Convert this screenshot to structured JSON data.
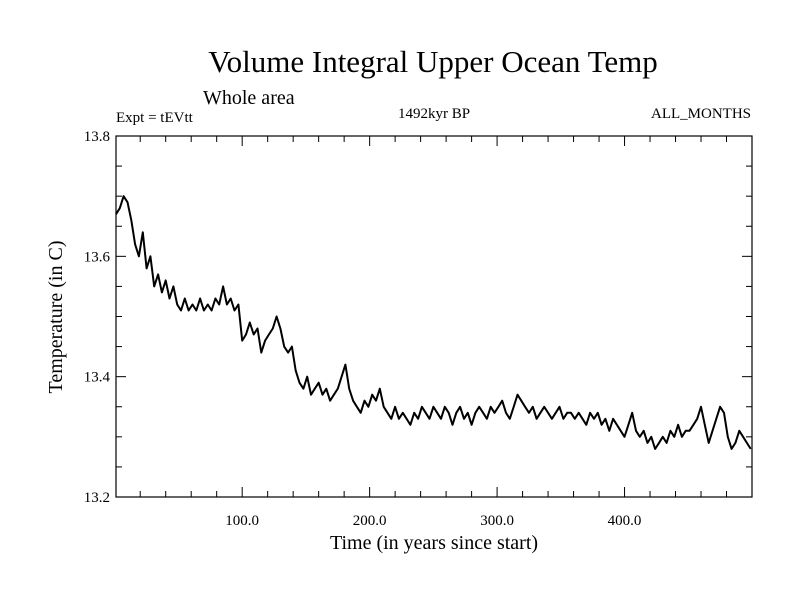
{
  "chart_data": {
    "type": "line",
    "title": "Volume Integral Upper Ocean Temp",
    "subtitle": "Whole area",
    "expt_label": "Expt = tEVtt",
    "center_label": "1492kyr BP",
    "right_label": "ALL_MONTHS",
    "xlabel": "Time (in years since start)",
    "ylabel": "Temperature (in C)",
    "xlim": [
      1,
      500
    ],
    "ylim": [
      13.2,
      13.8
    ],
    "x_ticks": [
      100,
      200,
      300,
      400
    ],
    "x_tick_labels": [
      "100.0",
      "200.0",
      "300.0",
      "400.0"
    ],
    "y_ticks": [
      13.2,
      13.4,
      13.6,
      13.8
    ],
    "y_tick_labels": [
      "13.2",
      "13.4",
      "13.6",
      "13.8"
    ],
    "series": [
      {
        "name": "Temperature",
        "color": "#000000",
        "x": [
          1,
          4,
          7,
          10,
          13,
          16,
          19,
          22,
          25,
          28,
          31,
          34,
          37,
          40,
          43,
          46,
          49,
          52,
          55,
          58,
          61,
          64,
          67,
          70,
          73,
          76,
          79,
          82,
          85,
          88,
          91,
          94,
          97,
          100,
          103,
          106,
          109,
          112,
          115,
          118,
          121,
          124,
          127,
          130,
          133,
          136,
          139,
          142,
          145,
          148,
          151,
          154,
          157,
          160,
          163,
          166,
          169,
          172,
          175,
          178,
          181,
          184,
          187,
          190,
          193,
          196,
          199,
          202,
          205,
          208,
          211,
          214,
          217,
          220,
          223,
          226,
          229,
          232,
          235,
          238,
          241,
          244,
          247,
          250,
          253,
          256,
          259,
          262,
          265,
          268,
          271,
          274,
          277,
          280,
          283,
          286,
          289,
          292,
          295,
          298,
          301,
          304,
          307,
          310,
          313,
          316,
          319,
          322,
          325,
          328,
          331,
          334,
          337,
          340,
          343,
          346,
          349,
          352,
          355,
          358,
          361,
          364,
          367,
          370,
          373,
          376,
          379,
          382,
          385,
          388,
          391,
          394,
          397,
          400,
          403,
          406,
          409,
          412,
          415,
          418,
          421,
          424,
          427,
          430,
          433,
          436,
          439,
          442,
          445,
          448,
          451,
          454,
          457,
          460,
          463,
          466,
          469,
          472,
          475,
          478,
          481,
          484,
          487,
          490,
          493,
          496,
          499
        ],
        "y": [
          13.67,
          13.68,
          13.7,
          13.69,
          13.66,
          13.62,
          13.6,
          13.64,
          13.58,
          13.6,
          13.55,
          13.57,
          13.54,
          13.56,
          13.53,
          13.55,
          13.52,
          13.51,
          13.53,
          13.51,
          13.52,
          13.51,
          13.53,
          13.51,
          13.52,
          13.51,
          13.53,
          13.52,
          13.55,
          13.52,
          13.53,
          13.51,
          13.52,
          13.46,
          13.47,
          13.49,
          13.47,
          13.48,
          13.44,
          13.46,
          13.47,
          13.48,
          13.5,
          13.48,
          13.45,
          13.44,
          13.45,
          13.41,
          13.39,
          13.38,
          13.4,
          13.37,
          13.38,
          13.39,
          13.37,
          13.38,
          13.36,
          13.37,
          13.38,
          13.4,
          13.42,
          13.38,
          13.36,
          13.35,
          13.34,
          13.36,
          13.35,
          13.37,
          13.36,
          13.38,
          13.35,
          13.34,
          13.33,
          13.35,
          13.33,
          13.34,
          13.33,
          13.32,
          13.34,
          13.33,
          13.35,
          13.34,
          13.33,
          13.35,
          13.34,
          13.33,
          13.35,
          13.34,
          13.32,
          13.34,
          13.35,
          13.33,
          13.34,
          13.32,
          13.34,
          13.35,
          13.34,
          13.33,
          13.35,
          13.34,
          13.35,
          13.36,
          13.34,
          13.33,
          13.35,
          13.37,
          13.36,
          13.35,
          13.34,
          13.35,
          13.33,
          13.34,
          13.35,
          13.34,
          13.33,
          13.34,
          13.35,
          13.33,
          13.34,
          13.34,
          13.33,
          13.34,
          13.33,
          13.32,
          13.34,
          13.33,
          13.34,
          13.32,
          13.33,
          13.31,
          13.33,
          13.32,
          13.31,
          13.3,
          13.32,
          13.34,
          13.31,
          13.3,
          13.31,
          13.29,
          13.3,
          13.28,
          13.29,
          13.3,
          13.29,
          13.31,
          13.3,
          13.32,
          13.3,
          13.31,
          13.31,
          13.32,
          13.33,
          13.35,
          13.32,
          13.29,
          13.31,
          13.33,
          13.35,
          13.34,
          13.3,
          13.28,
          13.29,
          13.31,
          13.3,
          13.29,
          13.28
        ]
      }
    ]
  }
}
